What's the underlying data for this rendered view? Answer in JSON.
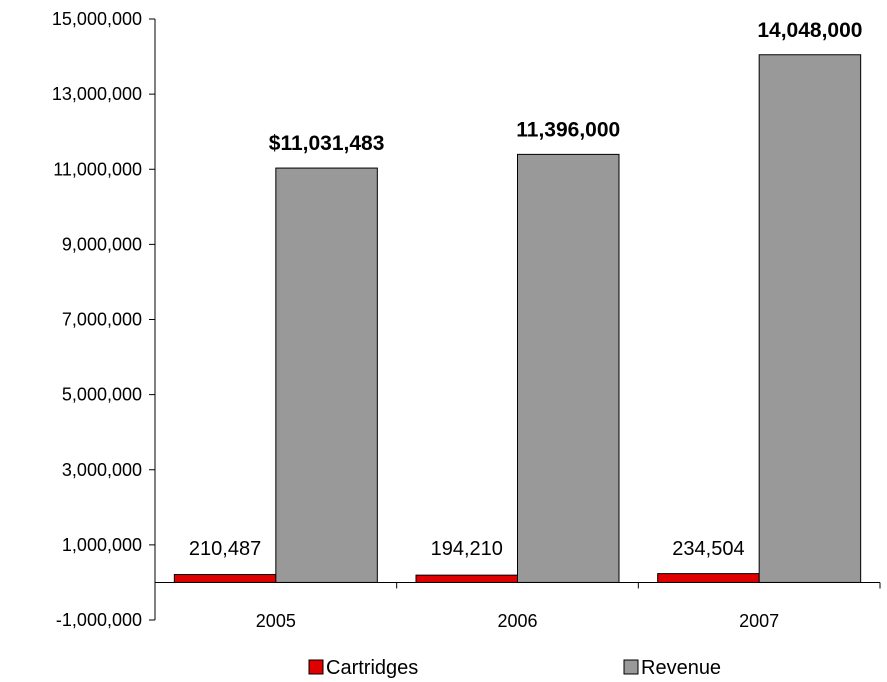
{
  "chart_data": {
    "type": "bar",
    "categories": [
      "2005",
      "2006",
      "2007"
    ],
    "series": [
      {
        "name": "Cartridges",
        "values": [
          210487,
          194210,
          234504
        ],
        "labels": [
          "210,487",
          "194,210",
          "234,504"
        ],
        "color": "#e00000",
        "label_bold": false
      },
      {
        "name": "Revenue",
        "values": [
          11031483,
          11396000,
          14048000
        ],
        "labels": [
          "$11,031,483",
          "11,396,000",
          "14,048,000"
        ],
        "color": "#999999",
        "label_bold": true
      }
    ],
    "ylim": [
      -1000000,
      15000000
    ],
    "yticks": [
      -1000000,
      1000000,
      3000000,
      5000000,
      7000000,
      9000000,
      11000000,
      13000000,
      15000000
    ],
    "ytick_labels": [
      "-1,000,000",
      "1,000,000",
      "3,000,000",
      "5,000,000",
      "7,000,000",
      "9,000,000",
      "11,000,000",
      "13,000,000",
      "15,000,000"
    ],
    "title": "",
    "xlabel": "",
    "ylabel": "",
    "grid": false,
    "legend_position": "bottom"
  }
}
